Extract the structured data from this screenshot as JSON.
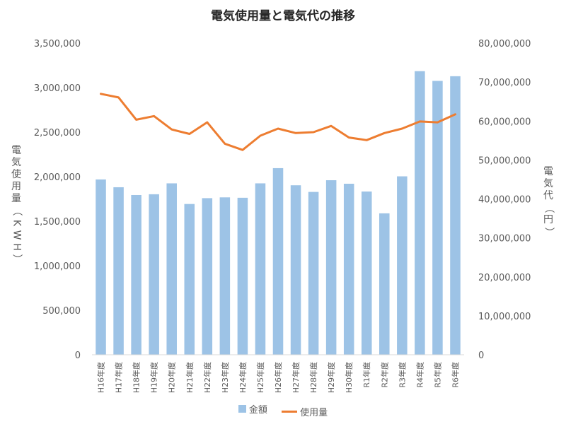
{
  "chart_data": {
    "type": "bar",
    "title": "電気使用量と電気代の推移",
    "categories": [
      "H16年度",
      "H17年度",
      "H18年度",
      "H19年度",
      "H20年度",
      "H21年度",
      "H22年度",
      "H23年度",
      "H24年度",
      "H25年度",
      "H26年度",
      "H27年度",
      "H28年度",
      "H29年度",
      "H30年度",
      "R1年度",
      "R2年度",
      "R3年度",
      "R4年度",
      "R5年度",
      "R6年度"
    ],
    "series": [
      {
        "name": "金額",
        "type": "bar",
        "axis": "right",
        "color": "#9dc3e6",
        "values": [
          45000000,
          43000000,
          41000000,
          41200000,
          44000000,
          38700000,
          40200000,
          40400000,
          40300000,
          44000000,
          47900000,
          43500000,
          41800000,
          44800000,
          43900000,
          41900000,
          36300000,
          45800000,
          72800000,
          70300000,
          71500000
        ]
      },
      {
        "name": "使用量",
        "type": "line",
        "axis": "left",
        "color": "#ed7d31",
        "values": [
          2930000,
          2890000,
          2640000,
          2680000,
          2530000,
          2480000,
          2610000,
          2370000,
          2300000,
          2460000,
          2540000,
          2490000,
          2500000,
          2570000,
          2440000,
          2410000,
          2490000,
          2540000,
          2620000,
          2610000,
          2700000
        ]
      }
    ],
    "ylabel": "電気使用量（KWH）",
    "ylabel_right": "電気代（円）",
    "ylim": [
      0,
      3500000
    ],
    "ylim_right": [
      0,
      80000000
    ],
    "yticks": [
      "0",
      "500,000",
      "1,000,000",
      "1,500,000",
      "2,000,000",
      "2,500,000",
      "3,000,000",
      "3,500,000"
    ],
    "yticks_right": [
      "0",
      "10,000,000",
      "20,000,000",
      "30,000,000",
      "40,000,000",
      "50,000,000",
      "60,000,000",
      "70,000,000",
      "80,000,000"
    ],
    "grid": false,
    "legend_position": "bottom"
  }
}
